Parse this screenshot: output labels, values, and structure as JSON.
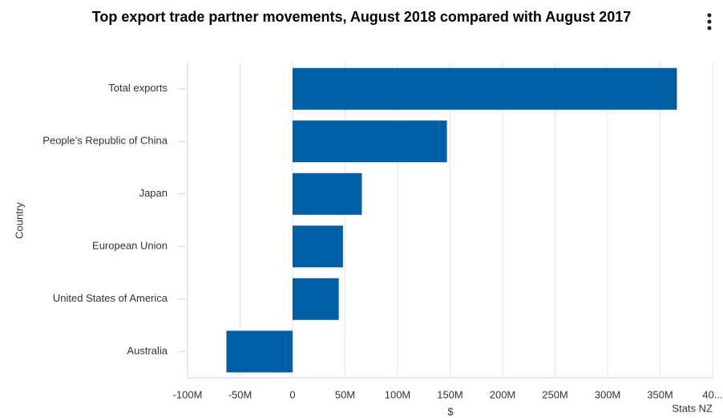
{
  "chart_data": {
    "type": "bar",
    "orientation": "horizontal",
    "title": "Top export trade partner movements, August 2018 compared with August 2017",
    "x_label": "$",
    "y_label": "Country",
    "credit": "Stats NZ",
    "categories": [
      "Total exports",
      "People's Republic of China",
      "Japan",
      "European Union",
      "United States of America",
      "Australia"
    ],
    "values": [
      366000000,
      147000000,
      66000000,
      48000000,
      44000000,
      -63000000
    ],
    "color": "#005ea5",
    "xlim": [
      -100000000,
      400000000
    ],
    "xticks": [
      {
        "value": -100000000,
        "label": "-100M"
      },
      {
        "value": -50000000,
        "label": "-50M"
      },
      0,
      {
        "value": 50000000,
        "label": "50M"
      },
      {
        "value": 100000000,
        "label": "100M"
      },
      {
        "value": 150000000,
        "label": "150M"
      },
      {
        "value": 200000000,
        "label": "200M"
      },
      {
        "value": 250000000,
        "label": "250M"
      },
      {
        "value": 300000000,
        "label": "300M"
      },
      {
        "value": 350000000,
        "label": "350M"
      },
      {
        "value": 400000000,
        "label": "40..."
      }
    ],
    "grid": true
  }
}
